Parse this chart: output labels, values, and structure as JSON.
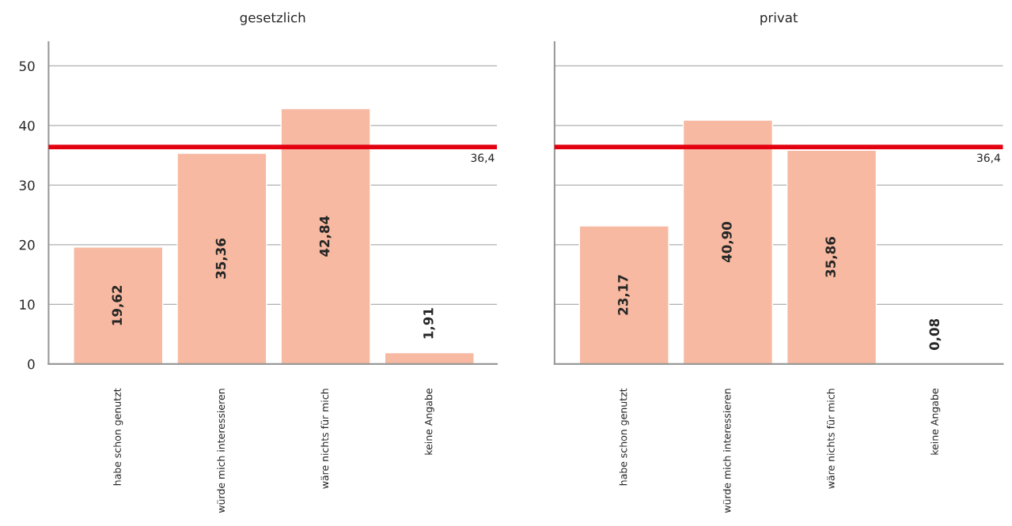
{
  "chart_data": [
    {
      "type": "bar",
      "title": "gesetzlich",
      "categories": [
        "habe schon genutzt",
        "würde mich interessieren",
        "wäre nichts für mich",
        "keine Angabe"
      ],
      "values": [
        19.62,
        35.36,
        42.84,
        1.91
      ],
      "value_labels": [
        "19,62",
        "35,36",
        "42,84",
        "1,91"
      ],
      "color": "#f7b9a1",
      "ylim": [
        0,
        54
      ],
      "yticks": [
        0,
        10,
        20,
        30,
        40,
        50
      ],
      "grid": "y",
      "ref_lines": [
        {
          "axis": "y",
          "value": 36.4,
          "label": "36,4",
          "color": "#e3000f"
        }
      ]
    },
    {
      "type": "bar",
      "title": "privat",
      "categories": [
        "habe schon genutzt",
        "würde mich interessieren",
        "wäre nichts für mich",
        "keine Angabe"
      ],
      "values": [
        23.17,
        40.9,
        35.86,
        0.08
      ],
      "value_labels": [
        "23,17",
        "40,90",
        "35,86",
        "0,08"
      ],
      "color": "#f7b9a1",
      "ylim": [
        0,
        54
      ],
      "yticks": [
        0,
        10,
        20,
        30,
        40,
        50
      ],
      "grid": "y",
      "tick_labels": "x",
      "ref_lines": [
        {
          "axis": "y",
          "value": 36.4,
          "label": "36,4",
          "color": "#e3000f"
        }
      ]
    }
  ]
}
